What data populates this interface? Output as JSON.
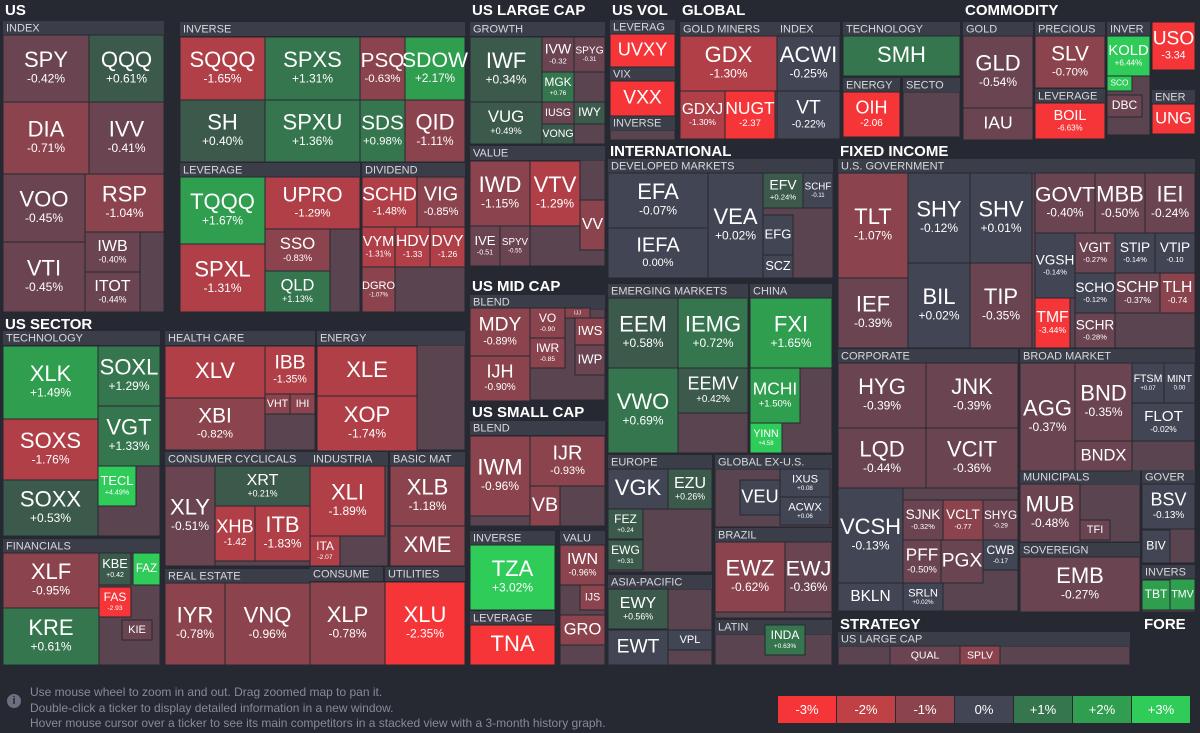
{
  "headers": [
    "US",
    "US LARGE CAP",
    "US VOL",
    "GLOBAL",
    "COMMODITY",
    "US SECTOR",
    "INTERNATIONAL",
    "FIXED INCOME",
    "US MID CAP",
    "US SMALL CAP",
    "STRATEGY",
    "FORE"
  ],
  "subheaders": [
    "INDEX",
    "INVERSE",
    "LEVERAGE",
    "DIVIDEND",
    "TECHNOLOGY",
    "FINANCIALS",
    "HEALTH CARE",
    "CONSUMER CYCLICALS",
    "REAL ESTATE",
    "ENERGY",
    "INDUSTRIA",
    "BASIC MAT",
    "CONSUME",
    "UTILITIES",
    "GROWTH",
    "VALUE",
    "BLEND",
    "BLEND",
    "INVERSE",
    "LEVERAGE",
    "VALU",
    "LEVERAG",
    "VIX",
    "INVERSE",
    "GOLD MINERS",
    "INDEX",
    "TECHNOLOGY",
    "ENERGY",
    "SECTO",
    "GOLD",
    "PRECIOUS",
    "LEVERAGE",
    "INVER",
    "ENER",
    "DEVELOPED MARKETS",
    "EMERGING MARKETS",
    "CHINA",
    "EUROPE",
    "GLOBAL EX-U.S.",
    "BRAZIL",
    "ASIA-PACIFIC",
    "LATIN",
    "U.S. GOVERNMENT",
    "CORPORATE",
    "BROAD MARKET",
    "MUNICIPALS",
    "GOVER",
    "SOVEREIGN",
    "INVERS",
    "US LARGE CAP"
  ],
  "tiles": [
    {
      "ticker": "SPY",
      "change": "-0.42%"
    },
    {
      "ticker": "QQQ",
      "change": "+0.61%"
    },
    {
      "ticker": "DIA",
      "change": "-0.71%"
    },
    {
      "ticker": "IVV",
      "change": "-0.41%"
    },
    {
      "ticker": "VOO",
      "change": "-0.45%"
    },
    {
      "ticker": "RSP",
      "change": "-1.04%"
    },
    {
      "ticker": "VTI",
      "change": "-0.45%"
    },
    {
      "ticker": "IWB",
      "change": "-0.40%"
    },
    {
      "ticker": "ITOT",
      "change": "-0.44%"
    },
    {
      "ticker": "SQQQ",
      "change": "-1.65%"
    },
    {
      "ticker": "SPXS",
      "change": "+1.31%"
    },
    {
      "ticker": "PSQ",
      "change": "-0.63%"
    },
    {
      "ticker": "SDOW",
      "change": "+2.17%"
    },
    {
      "ticker": "SH",
      "change": "+0.40%"
    },
    {
      "ticker": "SPXU",
      "change": "+1.36%"
    },
    {
      "ticker": "SDS",
      "change": "+0.98%"
    },
    {
      "ticker": "QID",
      "change": "-1.11%"
    },
    {
      "ticker": "TQQQ",
      "change": "+1.67%"
    },
    {
      "ticker": "UPRO",
      "change": "-1.29%"
    },
    {
      "ticker": "SPXL",
      "change": "-1.31%"
    },
    {
      "ticker": "SSO",
      "change": "-0.83%"
    },
    {
      "ticker": "QLD",
      "change": "+1.13%"
    },
    {
      "ticker": "SCHD",
      "change": "-1.48%"
    },
    {
      "ticker": "VIG",
      "change": "-0.85%"
    },
    {
      "ticker": "VYM",
      "change": "-1.31%"
    },
    {
      "ticker": "HDV",
      "change": "-1.33"
    },
    {
      "ticker": "DVY",
      "change": "-1.26"
    },
    {
      "ticker": "DGRO",
      "change": "-1.07%"
    },
    {
      "ticker": "XLK",
      "change": "+1.49%"
    },
    {
      "ticker": "SOXL",
      "change": "+1.29%"
    },
    {
      "ticker": "SOXS",
      "change": "-1.76%"
    },
    {
      "ticker": "VGT",
      "change": "+1.33%"
    },
    {
      "ticker": "TECL",
      "change": "+4.49%"
    },
    {
      "ticker": "SOXX",
      "change": "+0.53%"
    },
    {
      "ticker": "XLF",
      "change": "-0.95%"
    },
    {
      "ticker": "KBE",
      "change": "+0.42"
    },
    {
      "ticker": "FAZ"
    },
    {
      "ticker": "FAS",
      "change": "-2.93"
    },
    {
      "ticker": "KRE",
      "change": "+0.61%"
    },
    {
      "ticker": "KIE"
    },
    {
      "ticker": "XLV"
    },
    {
      "ticker": "IBB",
      "change": "-1.35%"
    },
    {
      "ticker": "VHT"
    },
    {
      "ticker": "IHI"
    },
    {
      "ticker": "XBI",
      "change": "-0.82%"
    },
    {
      "ticker": "XLY",
      "change": "-0.51%"
    },
    {
      "ticker": "XRT",
      "change": "+0.21%"
    },
    {
      "ticker": "XHB",
      "change": "-1.42"
    },
    {
      "ticker": "ITB",
      "change": "-1.83%"
    },
    {
      "ticker": "IYR",
      "change": "-0.78%"
    },
    {
      "ticker": "VNQ",
      "change": "-0.96%"
    },
    {
      "ticker": "XLE"
    },
    {
      "ticker": "XOP",
      "change": "-1.74%"
    },
    {
      "ticker": "XLI",
      "change": "-1.89%"
    },
    {
      "ticker": "ITA",
      "change": "-2.07"
    },
    {
      "ticker": "XLB",
      "change": "-1.18%"
    },
    {
      "ticker": "XME"
    },
    {
      "ticker": "XLP",
      "change": "-0.78%"
    },
    {
      "ticker": "XLU",
      "change": "-2.35%"
    },
    {
      "ticker": "IWF",
      "change": "+0.34%"
    },
    {
      "ticker": "IVW",
      "change": "-0.32"
    },
    {
      "ticker": "SPYG",
      "change": "-0.31"
    },
    {
      "ticker": "MGK",
      "change": "+0.76"
    },
    {
      "ticker": "VUG",
      "change": "+0.49%"
    },
    {
      "ticker": "IUSG"
    },
    {
      "ticker": "IWY"
    },
    {
      "ticker": "VONG"
    },
    {
      "ticker": "IWD",
      "change": "-1.15%"
    },
    {
      "ticker": "VTV",
      "change": "-1.29%"
    },
    {
      "ticker": "VV"
    },
    {
      "ticker": "IVE",
      "change": "-0.51"
    },
    {
      "ticker": "SPYV",
      "change": "-0.55"
    },
    {
      "ticker": "MDY",
      "change": "-0.89%"
    },
    {
      "ticker": "VO",
      "change": "-0.90"
    },
    {
      "ticker": "IJJ"
    },
    {
      "ticker": "IWS"
    },
    {
      "ticker": "IWR",
      "change": "-0.85"
    },
    {
      "ticker": "IJH",
      "change": "-0.90%"
    },
    {
      "ticker": "IWP"
    },
    {
      "ticker": "IWM",
      "change": "-0.96%"
    },
    {
      "ticker": "IJR",
      "change": "-0.93%"
    },
    {
      "ticker": "VB"
    },
    {
      "ticker": "TZA",
      "change": "+3.02%"
    },
    {
      "ticker": "TNA"
    },
    {
      "ticker": "IWN",
      "change": "-0.96%"
    },
    {
      "ticker": "IJS"
    },
    {
      "ticker": "GRO"
    },
    {
      "ticker": "UVXY"
    },
    {
      "ticker": "VXX"
    },
    {
      "ticker": "GDX",
      "change": "-1.30%"
    },
    {
      "ticker": "GDXJ",
      "change": "-1.30%"
    },
    {
      "ticker": "NUGT",
      "change": "-2.37"
    },
    {
      "ticker": "ACWI",
      "change": "-0.25%"
    },
    {
      "ticker": "VT",
      "change": "-0.22%"
    },
    {
      "ticker": "SMH"
    },
    {
      "ticker": "OIH",
      "change": "-2.06"
    },
    {
      "ticker": "GLD",
      "change": "-0.54%"
    },
    {
      "ticker": "IAU"
    },
    {
      "ticker": "SLV",
      "change": "-0.70%"
    },
    {
      "ticker": "BOIL",
      "change": "-6.63%"
    },
    {
      "ticker": "KOLD",
      "change": "+6.44%"
    },
    {
      "ticker": "SCO"
    },
    {
      "ticker": "USO",
      "change": "-3.34"
    },
    {
      "ticker": "DBC"
    },
    {
      "ticker": "UNG"
    },
    {
      "ticker": "EFA",
      "change": "-0.07%"
    },
    {
      "ticker": "IEFA",
      "change": "0.00%"
    },
    {
      "ticker": "VEA",
      "change": "+0.02%"
    },
    {
      "ticker": "EFV",
      "change": "+0.24%"
    },
    {
      "ticker": "SCHF",
      "change": "-0.11"
    },
    {
      "ticker": "EFG"
    },
    {
      "ticker": "SCZ"
    },
    {
      "ticker": "EEM",
      "change": "+0.58%"
    },
    {
      "ticker": "IEMG",
      "change": "+0.72%"
    },
    {
      "ticker": "VWO",
      "change": "+0.69%"
    },
    {
      "ticker": "EEMV",
      "change": "+0.42%"
    },
    {
      "ticker": "FXI",
      "change": "+1.65%"
    },
    {
      "ticker": "MCHI",
      "change": "+1.50%"
    },
    {
      "ticker": "YINN",
      "change": "+4.58"
    },
    {
      "ticker": "VGK"
    },
    {
      "ticker": "EZU",
      "change": "+0.26%"
    },
    {
      "ticker": "FEZ",
      "change": "+0.24"
    },
    {
      "ticker": "EWG",
      "change": "+0.31"
    },
    {
      "ticker": "VEU"
    },
    {
      "ticker": "IXUS",
      "change": "+0.08"
    },
    {
      "ticker": "ACWX",
      "change": "+0.06"
    },
    {
      "ticker": "EWZ",
      "change": "-0.62%"
    },
    {
      "ticker": "EWJ",
      "change": "-0.36%"
    },
    {
      "ticker": "EWY",
      "change": "+0.56%"
    },
    {
      "ticker": "VPL"
    },
    {
      "ticker": "EWT"
    },
    {
      "ticker": "INDA",
      "change": "+0.63%"
    },
    {
      "ticker": "TLT",
      "change": "-1.07%"
    },
    {
      "ticker": "SHY",
      "change": "-0.12%"
    },
    {
      "ticker": "SHV",
      "change": "+0.01%"
    },
    {
      "ticker": "IEF",
      "change": "-0.39%"
    },
    {
      "ticker": "BIL",
      "change": "+0.02%"
    },
    {
      "ticker": "TIP",
      "change": "-0.35%"
    },
    {
      "ticker": "GOVT",
      "change": "-0.40%"
    },
    {
      "ticker": "MBB",
      "change": "-0.50%"
    },
    {
      "ticker": "IEI",
      "change": "-0.24%"
    },
    {
      "ticker": "VGSH",
      "change": "-0.14%"
    },
    {
      "ticker": "VGIT",
      "change": "-0.27%"
    },
    {
      "ticker": "STIP",
      "change": "-0.14%"
    },
    {
      "ticker": "VTIP",
      "change": "-0.10"
    },
    {
      "ticker": "SCHO",
      "change": "-0.12%"
    },
    {
      "ticker": "SCHP",
      "change": "-0.37%"
    },
    {
      "ticker": "TLH",
      "change": "-0.74"
    },
    {
      "ticker": "TMF",
      "change": "-3.44%"
    },
    {
      "ticker": "SCHR",
      "change": "-0.28%"
    },
    {
      "ticker": "HYG",
      "change": "-0.39%"
    },
    {
      "ticker": "JNK",
      "change": "-0.39%"
    },
    {
      "ticker": "LQD",
      "change": "-0.44%"
    },
    {
      "ticker": "VCIT",
      "change": "-0.36%"
    },
    {
      "ticker": "VCSH",
      "change": "-0.13%"
    },
    {
      "ticker": "SJNK",
      "change": "-0.32%"
    },
    {
      "ticker": "VCLT",
      "change": "-0.77"
    },
    {
      "ticker": "SHYG",
      "change": "-0.29"
    },
    {
      "ticker": "PFF",
      "change": "-0.50%"
    },
    {
      "ticker": "PGX"
    },
    {
      "ticker": "CWB",
      "change": "-0.17"
    },
    {
      "ticker": "BKLN"
    },
    {
      "ticker": "SRLN",
      "change": "+0.02%"
    },
    {
      "ticker": "AGG",
      "change": "-0.37%"
    },
    {
      "ticker": "BND",
      "change": "-0.35%"
    },
    {
      "ticker": "FTSM",
      "change": "+0.07"
    },
    {
      "ticker": "MINT",
      "change": "0.00"
    },
    {
      "ticker": "FLOT",
      "change": "-0.02%"
    },
    {
      "ticker": "BNDX"
    },
    {
      "ticker": "MUB",
      "change": "-0.48%"
    },
    {
      "ticker": "TFI"
    },
    {
      "ticker": "BSV",
      "change": "-0.13%"
    },
    {
      "ticker": "BIV"
    },
    {
      "ticker": "EMB",
      "change": "-0.27%"
    },
    {
      "ticker": "TBT"
    },
    {
      "ticker": "TMV"
    },
    {
      "ticker": "QUAL"
    },
    {
      "ticker": "SPLV"
    }
  ],
  "help": [
    "Use mouse wheel to zoom in and out. Drag zoomed map to pan it.",
    "Double-click a ticker to display detailed information in a new window.",
    "Hover mouse cursor over a ticker to see its main competitors in a stacked view with a 3-month history graph."
  ],
  "legend": [
    "-3%",
    "-2%",
    "-1%",
    "0%",
    "+1%",
    "+2%",
    "+3%"
  ]
}
